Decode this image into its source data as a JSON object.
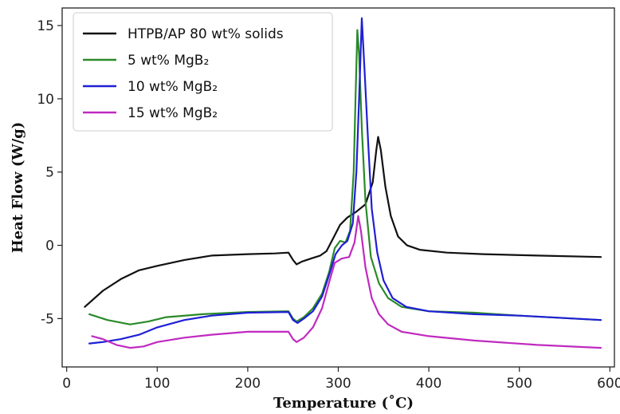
{
  "chart_data": {
    "type": "line",
    "title": "",
    "xlabel": "Temperature (˚C)",
    "ylabel": "Heat Flow (W/g)",
    "xlim": [
      -5,
      605
    ],
    "ylim": [
      -8.3,
      16.2
    ],
    "x_ticks": [
      0,
      100,
      200,
      300,
      400,
      500,
      600
    ],
    "y_ticks": [
      -5,
      0,
      5,
      10,
      15
    ],
    "grid": false,
    "legend_position": "top-left",
    "series": [
      {
        "name": "HTPB/AP 80 wt% solids",
        "color": "#111111",
        "points": [
          [
            20,
            -4.2
          ],
          [
            40,
            -3.1
          ],
          [
            60,
            -2.3
          ],
          [
            80,
            -1.7
          ],
          [
            100,
            -1.4
          ],
          [
            130,
            -1.0
          ],
          [
            160,
            -0.7
          ],
          [
            200,
            -0.6
          ],
          [
            230,
            -0.55
          ],
          [
            245,
            -0.5
          ],
          [
            250,
            -1.0
          ],
          [
            254,
            -1.3
          ],
          [
            260,
            -1.1
          ],
          [
            270,
            -0.9
          ],
          [
            280,
            -0.7
          ],
          [
            287,
            -0.4
          ],
          [
            292,
            0.2
          ],
          [
            297,
            0.8
          ],
          [
            302,
            1.4
          ],
          [
            310,
            1.9
          ],
          [
            320,
            2.3
          ],
          [
            330,
            2.8
          ],
          [
            338,
            4.3
          ],
          [
            342,
            6.5
          ],
          [
            344,
            7.4
          ],
          [
            347,
            6.5
          ],
          [
            352,
            4.0
          ],
          [
            358,
            2.0
          ],
          [
            366,
            0.6
          ],
          [
            376,
            0.0
          ],
          [
            390,
            -0.3
          ],
          [
            420,
            -0.5
          ],
          [
            460,
            -0.6
          ],
          [
            520,
            -0.7
          ],
          [
            590,
            -0.8
          ]
        ]
      },
      {
        "name": "5 wt% MgB₂",
        "color": "#2a8a2a",
        "points": [
          [
            25,
            -4.7
          ],
          [
            45,
            -5.1
          ],
          [
            70,
            -5.4
          ],
          [
            90,
            -5.2
          ],
          [
            110,
            -4.9
          ],
          [
            150,
            -4.7
          ],
          [
            200,
            -4.55
          ],
          [
            245,
            -4.5
          ],
          [
            250,
            -5.0
          ],
          [
            254,
            -5.2
          ],
          [
            262,
            -4.9
          ],
          [
            272,
            -4.3
          ],
          [
            282,
            -3.3
          ],
          [
            290,
            -1.8
          ],
          [
            296,
            -0.2
          ],
          [
            302,
            0.3
          ],
          [
            308,
            0.2
          ],
          [
            313,
            1.0
          ],
          [
            317,
            5.0
          ],
          [
            319,
            10.0
          ],
          [
            321,
            14.7
          ],
          [
            323,
            13.0
          ],
          [
            326,
            8.0
          ],
          [
            330,
            3.0
          ],
          [
            336,
            -0.8
          ],
          [
            345,
            -2.6
          ],
          [
            355,
            -3.6
          ],
          [
            370,
            -4.2
          ],
          [
            400,
            -4.5
          ],
          [
            450,
            -4.6
          ],
          [
            500,
            -4.8
          ],
          [
            590,
            -5.1
          ]
        ]
      },
      {
        "name": "10 wt% MgB₂",
        "color": "#1f1fd6",
        "points": [
          [
            25,
            -6.7
          ],
          [
            40,
            -6.6
          ],
          [
            60,
            -6.4
          ],
          [
            80,
            -6.1
          ],
          [
            100,
            -5.6
          ],
          [
            130,
            -5.1
          ],
          [
            160,
            -4.8
          ],
          [
            200,
            -4.6
          ],
          [
            245,
            -4.55
          ],
          [
            250,
            -5.1
          ],
          [
            255,
            -5.3
          ],
          [
            262,
            -5.0
          ],
          [
            272,
            -4.5
          ],
          [
            282,
            -3.5
          ],
          [
            290,
            -2.0
          ],
          [
            297,
            -0.6
          ],
          [
            304,
            0.0
          ],
          [
            310,
            0.3
          ],
          [
            316,
            1.5
          ],
          [
            320,
            5.0
          ],
          [
            323,
            10.0
          ],
          [
            326,
            15.5
          ],
          [
            329,
            12.0
          ],
          [
            333,
            7.0
          ],
          [
            337,
            2.5
          ],
          [
            343,
            -0.5
          ],
          [
            350,
            -2.4
          ],
          [
            360,
            -3.6
          ],
          [
            375,
            -4.2
          ],
          [
            400,
            -4.5
          ],
          [
            450,
            -4.7
          ],
          [
            500,
            -4.8
          ],
          [
            590,
            -5.1
          ]
        ]
      },
      {
        "name": "15 wt% MgB₂",
        "color": "#c02ac0",
        "points": [
          [
            28,
            -6.2
          ],
          [
            40,
            -6.4
          ],
          [
            55,
            -6.8
          ],
          [
            70,
            -7.0
          ],
          [
            85,
            -6.9
          ],
          [
            100,
            -6.6
          ],
          [
            130,
            -6.3
          ],
          [
            160,
            -6.1
          ],
          [
            200,
            -5.9
          ],
          [
            245,
            -5.9
          ],
          [
            250,
            -6.4
          ],
          [
            254,
            -6.6
          ],
          [
            262,
            -6.3
          ],
          [
            272,
            -5.6
          ],
          [
            282,
            -4.3
          ],
          [
            290,
            -2.5
          ],
          [
            296,
            -1.2
          ],
          [
            304,
            -0.9
          ],
          [
            312,
            -0.8
          ],
          [
            318,
            0.2
          ],
          [
            322,
            2.0
          ],
          [
            325,
            1.0
          ],
          [
            330,
            -1.5
          ],
          [
            337,
            -3.6
          ],
          [
            345,
            -4.7
          ],
          [
            355,
            -5.4
          ],
          [
            370,
            -5.9
          ],
          [
            400,
            -6.2
          ],
          [
            450,
            -6.5
          ],
          [
            520,
            -6.8
          ],
          [
            590,
            -7.0
          ]
        ]
      }
    ]
  }
}
